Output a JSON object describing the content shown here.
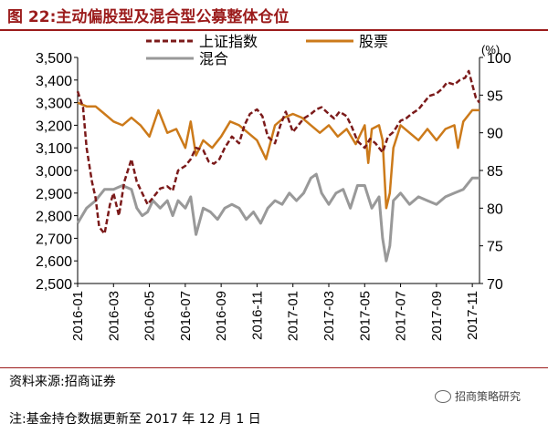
{
  "title": "图 22:主动偏股型及混合型公募整体仓位",
  "source": "资料来源:招商证券",
  "note": "注:基金持仓数据更新至 2017 年 12 月 1 日",
  "watermark": "招商策略研究",
  "colors": {
    "index": "#7b1a1a",
    "equity": "#cc7a1a",
    "hybrid": "#999999",
    "accent": "#9b1b1b"
  },
  "chart_data": {
    "type": "line",
    "left_axis": {
      "ticks": [
        "2,500",
        "2,600",
        "2,700",
        "2,800",
        "2,900",
        "3,000",
        "3,100",
        "3,200",
        "3,300",
        "3,400",
        "3,500"
      ],
      "range": [
        2500,
        3500
      ]
    },
    "right_axis": {
      "label": "(%)",
      "ticks": [
        "70",
        "75",
        "80",
        "85",
        "90",
        "95",
        "100"
      ],
      "range": [
        70,
        100
      ]
    },
    "x_ticks": [
      "2016-01",
      "2016-03",
      "2016-05",
      "2016-07",
      "2016-09",
      "2016-11",
      "2017-01",
      "2017-03",
      "2017-05",
      "2017-07",
      "2017-09",
      "2017-11"
    ],
    "legend": [
      "上证指数",
      "股票",
      "混合"
    ],
    "series": [
      {
        "name": "上证指数",
        "axis": "left",
        "style": "dashed",
        "points": [
          [
            0,
            3350
          ],
          [
            0.3,
            3280
          ],
          [
            0.5,
            3100
          ],
          [
            0.8,
            2950
          ],
          [
            1.0,
            2880
          ],
          [
            1.2,
            2750
          ],
          [
            1.5,
            2720
          ],
          [
            1.8,
            2850
          ],
          [
            2.0,
            2900
          ],
          [
            2.3,
            2800
          ],
          [
            2.6,
            2950
          ],
          [
            3.0,
            3050
          ],
          [
            3.3,
            2950
          ],
          [
            3.6,
            2900
          ],
          [
            3.9,
            2850
          ],
          [
            4.2,
            2880
          ],
          [
            4.6,
            2920
          ],
          [
            5.0,
            2930
          ],
          [
            5.3,
            2910
          ],
          [
            5.6,
            3000
          ],
          [
            6.0,
            3020
          ],
          [
            6.3,
            3050
          ],
          [
            6.6,
            3100
          ],
          [
            7.0,
            3090
          ],
          [
            7.3,
            3040
          ],
          [
            7.6,
            3030
          ],
          [
            7.9,
            3050
          ],
          [
            8.2,
            3100
          ],
          [
            8.6,
            3150
          ],
          [
            9.0,
            3120
          ],
          [
            9.3,
            3200
          ],
          [
            9.6,
            3250
          ],
          [
            10.0,
            3270
          ],
          [
            10.3,
            3240
          ],
          [
            10.6,
            3150
          ],
          [
            11.0,
            3120
          ],
          [
            11.3,
            3200
          ],
          [
            11.6,
            3260
          ],
          [
            12.0,
            3170
          ],
          [
            12.3,
            3200
          ],
          [
            12.6,
            3230
          ],
          [
            13.0,
            3250
          ],
          [
            13.3,
            3270
          ],
          [
            13.6,
            3280
          ],
          [
            14.0,
            3250
          ],
          [
            14.3,
            3230
          ],
          [
            14.6,
            3260
          ],
          [
            15.0,
            3240
          ],
          [
            15.3,
            3190
          ],
          [
            15.6,
            3130
          ],
          [
            16.0,
            3100
          ],
          [
            16.3,
            3140
          ],
          [
            16.6,
            3120
          ],
          [
            17.0,
            3080
          ],
          [
            17.3,
            3150
          ],
          [
            17.6,
            3170
          ],
          [
            18.0,
            3220
          ],
          [
            18.3,
            3230
          ],
          [
            18.6,
            3250
          ],
          [
            19.0,
            3270
          ],
          [
            19.3,
            3300
          ],
          [
            19.6,
            3330
          ],
          [
            20.0,
            3340
          ],
          [
            20.3,
            3360
          ],
          [
            20.6,
            3390
          ],
          [
            21.0,
            3380
          ],
          [
            21.3,
            3400
          ],
          [
            21.6,
            3410
          ],
          [
            21.8,
            3440
          ],
          [
            22.0,
            3380
          ],
          [
            22.2,
            3320
          ],
          [
            22.4,
            3300
          ]
        ]
      },
      {
        "name": "股票",
        "axis": "right",
        "style": "solid",
        "points": [
          [
            0,
            94
          ],
          [
            0.5,
            93.5
          ],
          [
            1.0,
            93.5
          ],
          [
            1.5,
            92.5
          ],
          [
            2.0,
            91.5
          ],
          [
            2.5,
            91
          ],
          [
            3.0,
            92
          ],
          [
            3.5,
            91
          ],
          [
            4.0,
            89.5
          ],
          [
            4.5,
            93
          ],
          [
            5.0,
            90
          ],
          [
            5.5,
            90.5
          ],
          [
            6.0,
            88
          ],
          [
            6.3,
            91.5
          ],
          [
            6.6,
            87
          ],
          [
            7.0,
            89
          ],
          [
            7.5,
            88
          ],
          [
            8.0,
            89.5
          ],
          [
            8.5,
            91.5
          ],
          [
            9.0,
            91
          ],
          [
            9.5,
            90
          ],
          [
            10.0,
            89
          ],
          [
            10.5,
            86.5
          ],
          [
            11.0,
            91
          ],
          [
            11.5,
            92
          ],
          [
            12.0,
            92.5
          ],
          [
            12.5,
            92
          ],
          [
            13.0,
            91
          ],
          [
            13.5,
            90
          ],
          [
            14.0,
            91
          ],
          [
            14.5,
            89.5
          ],
          [
            15.0,
            90.5
          ],
          [
            15.5,
            88.5
          ],
          [
            16.0,
            91
          ],
          [
            16.2,
            86
          ],
          [
            16.4,
            90.5
          ],
          [
            16.8,
            91
          ],
          [
            17.0,
            89
          ],
          [
            17.2,
            80
          ],
          [
            17.4,
            82
          ],
          [
            17.6,
            88
          ],
          [
            18.0,
            91
          ],
          [
            18.5,
            90
          ],
          [
            19.0,
            89
          ],
          [
            19.5,
            90.5
          ],
          [
            20.0,
            89
          ],
          [
            20.5,
            90.5
          ],
          [
            21.0,
            91
          ],
          [
            21.2,
            88
          ],
          [
            21.5,
            91.5
          ],
          [
            22.0,
            93
          ],
          [
            22.4,
            93
          ]
        ]
      },
      {
        "name": "混合",
        "axis": "right",
        "style": "solid",
        "points": [
          [
            0,
            78
          ],
          [
            0.5,
            80
          ],
          [
            1.0,
            81
          ],
          [
            1.5,
            82.5
          ],
          [
            2.0,
            82.5
          ],
          [
            2.5,
            83
          ],
          [
            3.0,
            82.5
          ],
          [
            3.3,
            80
          ],
          [
            3.6,
            79
          ],
          [
            3.9,
            79.5
          ],
          [
            4.2,
            81
          ],
          [
            4.6,
            80
          ],
          [
            5.0,
            81
          ],
          [
            5.3,
            79
          ],
          [
            5.6,
            81
          ],
          [
            6.0,
            80
          ],
          [
            6.3,
            81.5
          ],
          [
            6.6,
            76.5
          ],
          [
            7.0,
            80
          ],
          [
            7.4,
            79.5
          ],
          [
            7.8,
            78.5
          ],
          [
            8.2,
            80
          ],
          [
            8.6,
            80.5
          ],
          [
            9.0,
            80
          ],
          [
            9.4,
            78.5
          ],
          [
            9.8,
            79.5
          ],
          [
            10.2,
            78
          ],
          [
            10.6,
            80
          ],
          [
            11.0,
            81
          ],
          [
            11.4,
            80.5
          ],
          [
            11.8,
            82
          ],
          [
            12.2,
            81
          ],
          [
            12.6,
            82
          ],
          [
            13.0,
            84
          ],
          [
            13.3,
            84.5
          ],
          [
            13.6,
            82
          ],
          [
            14.0,
            80.5
          ],
          [
            14.4,
            82
          ],
          [
            14.8,
            82.5
          ],
          [
            15.2,
            80
          ],
          [
            15.6,
            83
          ],
          [
            16.0,
            83
          ],
          [
            16.4,
            80
          ],
          [
            16.8,
            81.5
          ],
          [
            17.0,
            76
          ],
          [
            17.2,
            73
          ],
          [
            17.4,
            75
          ],
          [
            17.6,
            81
          ],
          [
            18.0,
            82
          ],
          [
            18.5,
            80.5
          ],
          [
            19.0,
            81.5
          ],
          [
            19.5,
            81
          ],
          [
            20.0,
            80.5
          ],
          [
            20.5,
            81.5
          ],
          [
            21.0,
            82
          ],
          [
            21.5,
            82.5
          ],
          [
            22.0,
            84
          ],
          [
            22.4,
            84
          ]
        ]
      }
    ]
  }
}
